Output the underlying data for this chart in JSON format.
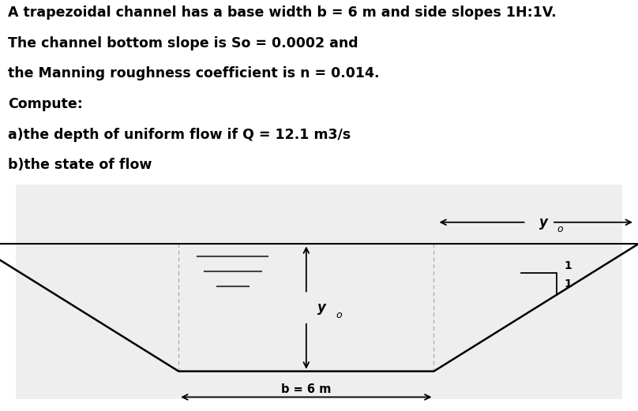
{
  "title_lines": [
    "A trapezoidal channel has a base width b = 6 m and side slopes 1H:1V.",
    "The channel bottom slope is So = 0.0002 and",
    "the Manning roughness coefficient is n = 0.014.",
    "Compute:",
    "a)the depth of uniform flow if Q = 12.1 m3/s",
    "b)the state of flow"
  ],
  "background_color": "#ffffff",
  "diagram_bg": "#eeeeee",
  "text_color": "#000000",
  "line_color": "#000000",
  "b_label": "b = 6 m",
  "yo_label": "y",
  "yo_sub": "o",
  "slope_label_h": "1",
  "slope_label_v": "1",
  "dashed_color": "#aaaaaa",
  "font_size_text": 12.5
}
